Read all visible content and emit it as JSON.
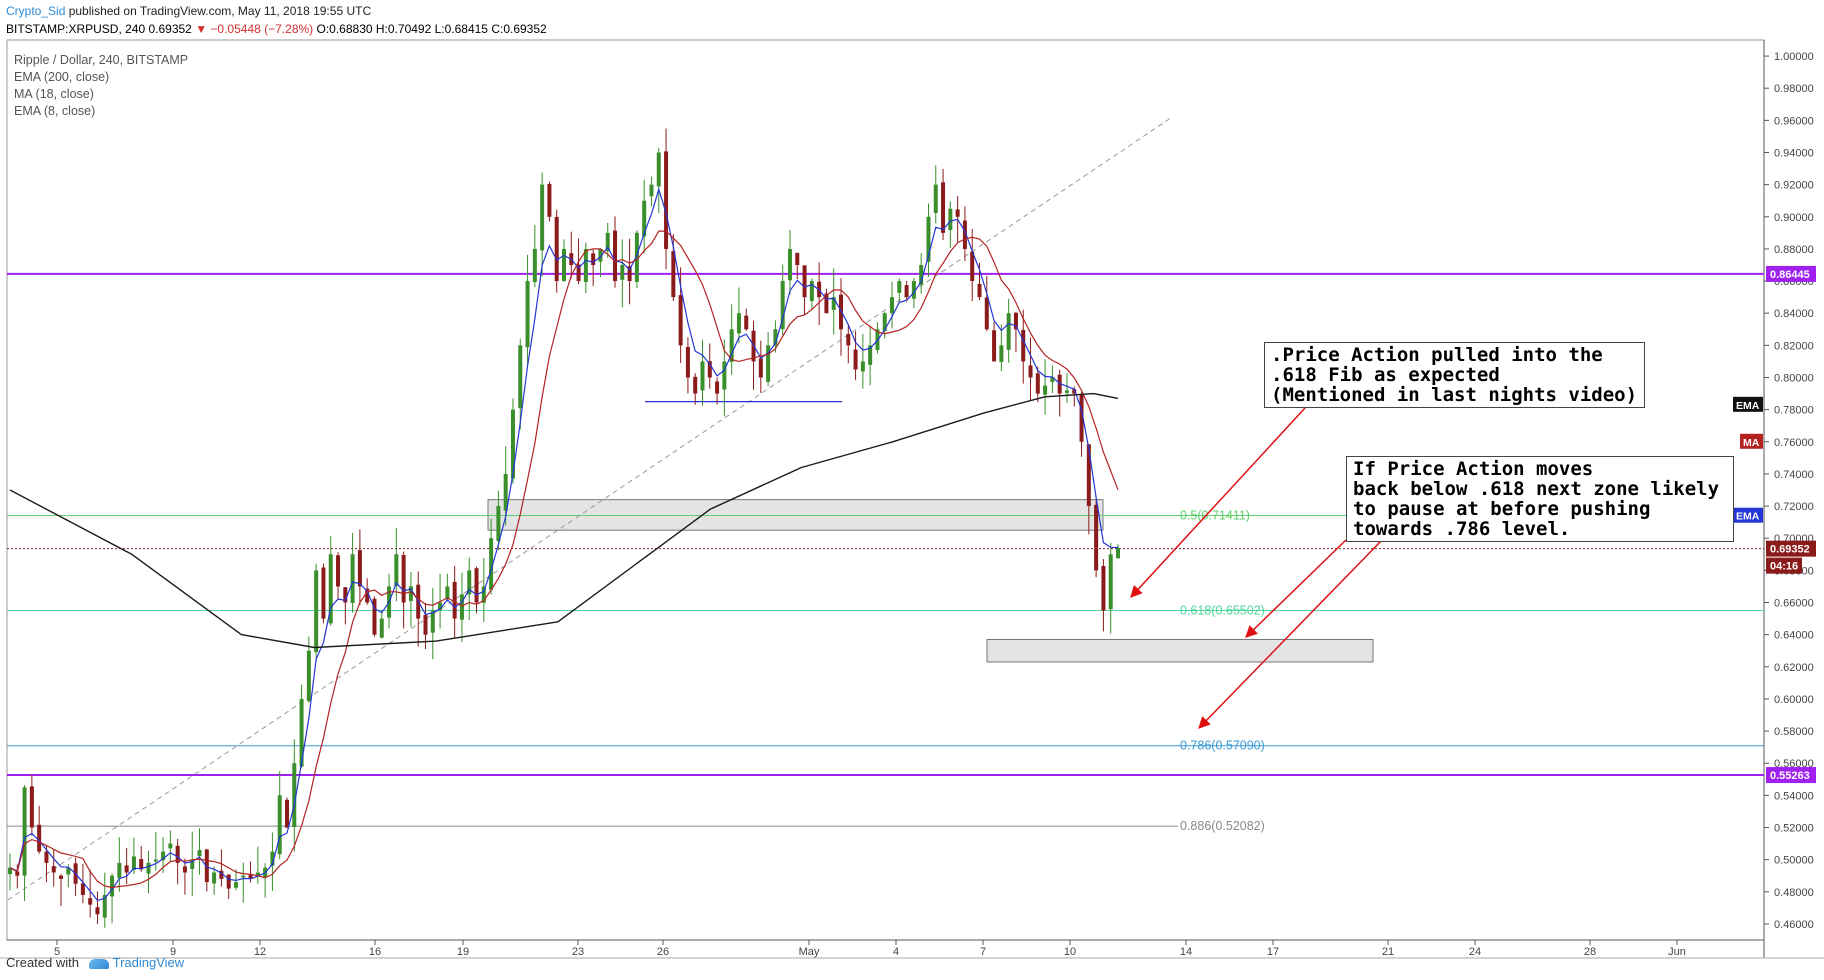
{
  "header": {
    "author": "Crypto_Sid",
    "published": " published on TradingView.com, May 11, 2018 19:55 UTC",
    "symbol_line_prefix": "BITSTAMP:XRPUSD, 240  0.69352 ",
    "symbol_line_change": "▼ −0.05448 (−7.28%)",
    "ohlc": "  O:0.68830 H:0.70492 L:0.68415 C:0.69352"
  },
  "legend": {
    "title": "Ripple / Dollar, 240, BITSTAMP",
    "items": [
      "EMA (200, close)",
      "MA (18, close)",
      "EMA (8, close)"
    ]
  },
  "notes": {
    "note1": [
      ".Price Action pulled into the",
      ".618 Fib as expected",
      "(Mentioned in last nights video)"
    ],
    "note2": [
      "If Price Action moves",
      "back below .618  next zone likely",
      "to pause at before pushing",
      "towards .786 level."
    ]
  },
  "footer": {
    "created_with": "Created with",
    "brand": "TradingView"
  },
  "colors": {
    "up": "#3a8f2c",
    "down": "#8b1a1a",
    "ema200": "#1a1a1a",
    "ma18": "#b52222",
    "ema8": "#2436d6",
    "horizontal": "#a020f0",
    "fib50": "#5fcf6a",
    "fib618": "#4fd6a0",
    "fib786": "#3a9ad6",
    "fib886": "#888888",
    "arrow": "#e01010"
  },
  "chart_data": {
    "type": "candlestick",
    "symbol": "BITSTAMP:XRPUSD",
    "interval": "240",
    "ylim": [
      0.45,
      1.01
    ],
    "y_ticks": [
      "1.00000",
      "0.98000",
      "0.96000",
      "0.94000",
      "0.92000",
      "0.90000",
      "0.88000",
      "0.86000",
      "0.84000",
      "0.82000",
      "0.80000",
      "0.78000",
      "0.76000",
      "0.74000",
      "0.72000",
      "0.70000",
      "0.68000",
      "0.66000",
      "0.64000",
      "0.62000",
      "0.60000",
      "0.58000",
      "0.56000",
      "0.54000",
      "0.52000",
      "0.50000",
      "0.48000",
      "0.46000"
    ],
    "x_ticks": [
      "5",
      "9",
      "12",
      "16",
      "19",
      "23",
      "26",
      "May",
      "4",
      "7",
      "10",
      "14",
      "17",
      "21",
      "24",
      "28",
      "Jun"
    ],
    "last_price": "0.69352",
    "countdown": "04:16",
    "horizontal_levels": [
      {
        "label": "0.86445",
        "value": 0.86445
      },
      {
        "label": "0.55263",
        "value": 0.55263
      }
    ],
    "fib_levels": [
      {
        "label": "0.5(0.71411)",
        "value": 0.71411
      },
      {
        "label": "0.618(0.65502)",
        "value": 0.65502
      },
      {
        "label": "0.786(0.57090)",
        "value": 0.5709
      },
      {
        "label": "0.886(0.52082)",
        "value": 0.52082
      }
    ],
    "ma_tags": [
      {
        "label": "EMA",
        "value": 0.783
      },
      {
        "label": "MA",
        "value": 0.76
      },
      {
        "label": "EMA",
        "value": 0.714
      }
    ],
    "zones": [
      {
        "name": "resistance-zone",
        "from": 0.705,
        "to": 0.724
      },
      {
        "name": "target-zone",
        "from": 0.623,
        "to": 0.637
      }
    ],
    "close_path": [
      0.495,
      0.49,
      0.545,
      0.52,
      0.505,
      0.498,
      0.492,
      0.488,
      0.495,
      0.485,
      0.478,
      0.472,
      0.466,
      0.478,
      0.49,
      0.498,
      0.492,
      0.502,
      0.494,
      0.498,
      0.5,
      0.505,
      0.51,
      0.498,
      0.492,
      0.5,
      0.506,
      0.486,
      0.492,
      0.488,
      0.482,
      0.486,
      0.49,
      0.488,
      0.492,
      0.495,
      0.505,
      0.54,
      0.52,
      0.56,
      0.6,
      0.63,
      0.68,
      0.65,
      0.69,
      0.67,
      0.66,
      0.69,
      0.67,
      0.66,
      0.64,
      0.65,
      0.67,
      0.69,
      0.66,
      0.67,
      0.65,
      0.64,
      0.655,
      0.66,
      0.67,
      0.65,
      0.665,
      0.68,
      0.66,
      0.67,
      0.7,
      0.72,
      0.74,
      0.78,
      0.82,
      0.86,
      0.88,
      0.92,
      0.9,
      0.86,
      0.88,
      0.87,
      0.86,
      0.88,
      0.87,
      0.88,
      0.89,
      0.86,
      0.87,
      0.86,
      0.89,
      0.91,
      0.92,
      0.94,
      0.88,
      0.85,
      0.82,
      0.8,
      0.79,
      0.81,
      0.8,
      0.79,
      0.81,
      0.83,
      0.84,
      0.83,
      0.81,
      0.8,
      0.82,
      0.83,
      0.86,
      0.88,
      0.87,
      0.85,
      0.86,
      0.85,
      0.84,
      0.85,
      0.83,
      0.82,
      0.805,
      0.81,
      0.82,
      0.83,
      0.84,
      0.85,
      0.86,
      0.85,
      0.86,
      0.87,
      0.9,
      0.92,
      0.89,
      0.905,
      0.9,
      0.88,
      0.86,
      0.85,
      0.83,
      0.81,
      0.82,
      0.84,
      0.83,
      0.81,
      0.8,
      0.79,
      0.795,
      0.8,
      0.79,
      0.792,
      0.79,
      0.76,
      0.72,
      0.68,
      0.655,
      0.69,
      0.694
    ],
    "ema200_anchor": [
      [
        0,
        0.73
      ],
      [
        20,
        0.69
      ],
      [
        38,
        0.64
      ],
      [
        50,
        0.632
      ],
      [
        70,
        0.636
      ],
      [
        90,
        0.648
      ],
      [
        105,
        0.69
      ],
      [
        115,
        0.718
      ],
      [
        130,
        0.744
      ],
      [
        145,
        0.76
      ],
      [
        160,
        0.778
      ],
      [
        170,
        0.788
      ],
      [
        178,
        0.79
      ],
      [
        182,
        0.787
      ]
    ]
  }
}
